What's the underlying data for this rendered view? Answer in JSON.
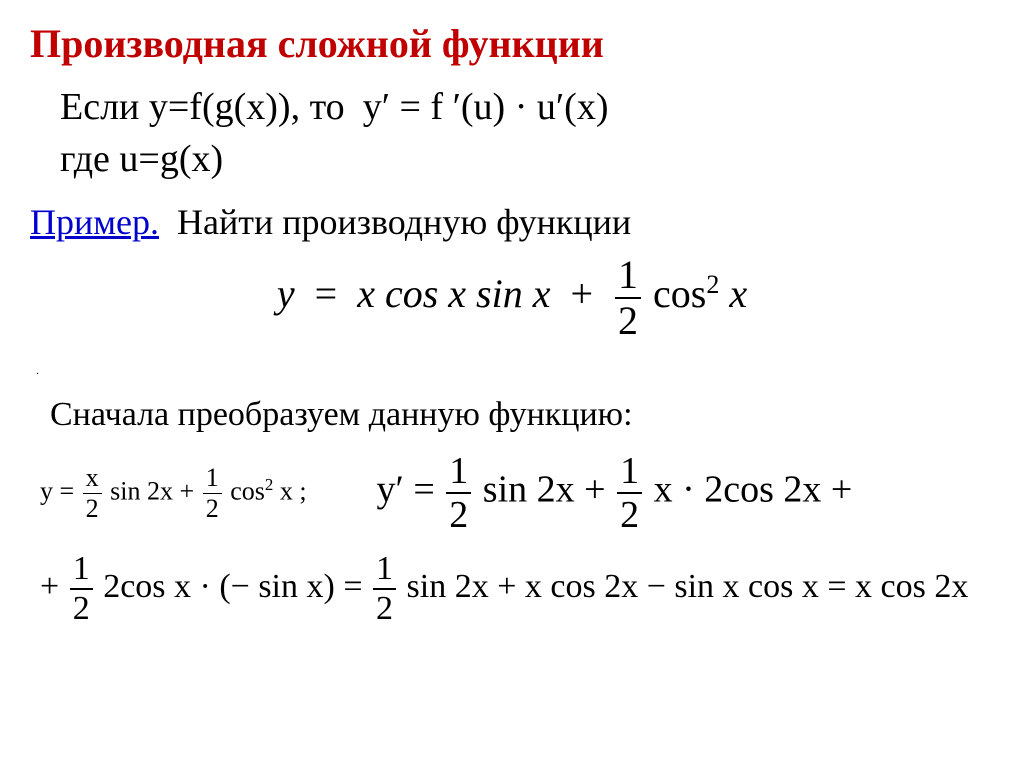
{
  "title": "Производная сложной функции",
  "rule": {
    "text_prefix": "Если y=f(g(x)), то",
    "formula": "y′ = f ′(u) · u′(x)",
    "where": "где u=g(x)"
  },
  "example": {
    "label": "Пример.",
    "task": "Найти производную функции",
    "given": {
      "lhs": "y",
      "term1_pre": "x cos x sin x",
      "plus": "+",
      "frac_num": "1",
      "frac_den": "2",
      "term2_tail": "cos",
      "term2_sup": "2",
      "term2_x": " x"
    }
  },
  "transform_text": "Сначала преобразуем данную функцию:",
  "simplified": {
    "lhs": "y =",
    "f1_num": "x",
    "f1_den": "2",
    "t1": "sin 2x +",
    "f2_num": "1",
    "f2_den": "2",
    "t2_a": "cos",
    "t2_sup": "2",
    "t2_b": " x ;"
  },
  "deriv_line1": {
    "lhs": "y′ =",
    "f1_num": "1",
    "f1_den": "2",
    "t1": "sin 2x +",
    "f2_num": "1",
    "f2_den": "2",
    "t2": "x · 2cos 2x +"
  },
  "deriv_line2": {
    "plus": "+",
    "f1_num": "1",
    "f1_den": "2",
    "t1": "2cos x · (− sin x) =",
    "f2_num": "1",
    "f2_den": "2",
    "t2": "sin 2x + x cos 2x − sin x cos x = x cos 2x"
  },
  "colors": {
    "title": "#c00000",
    "example_label": "#0000cc",
    "text": "#000000",
    "background": "#ffffff"
  },
  "typography": {
    "title_size_pt": 30,
    "body_size_pt": 28,
    "font_family": "Times New Roman"
  }
}
